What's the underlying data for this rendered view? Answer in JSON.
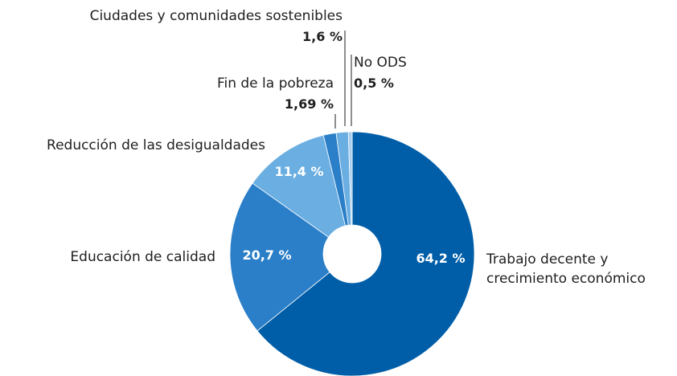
{
  "chart_data": {
    "type": "pie",
    "categories": [
      "Trabajo decente y crecimiento económico",
      "Educación de calidad",
      "Reducción de las desigualdades",
      "Fin de la pobreza",
      "Ciudades y comunidades sostenibles",
      "No ODS"
    ],
    "values": [
      64.2,
      20.7,
      11.4,
      1.69,
      1.6,
      0.5
    ],
    "value_labels": [
      "64,2 %",
      "20,7 %",
      "11,4 %",
      "1,69 %",
      "1,6 %",
      "0,5 %"
    ],
    "colors": [
      "#005ea8",
      "#2a7fc8",
      "#6aaee2",
      "#2a7fc8",
      "#6aaee2",
      "#a9cdee"
    ]
  }
}
